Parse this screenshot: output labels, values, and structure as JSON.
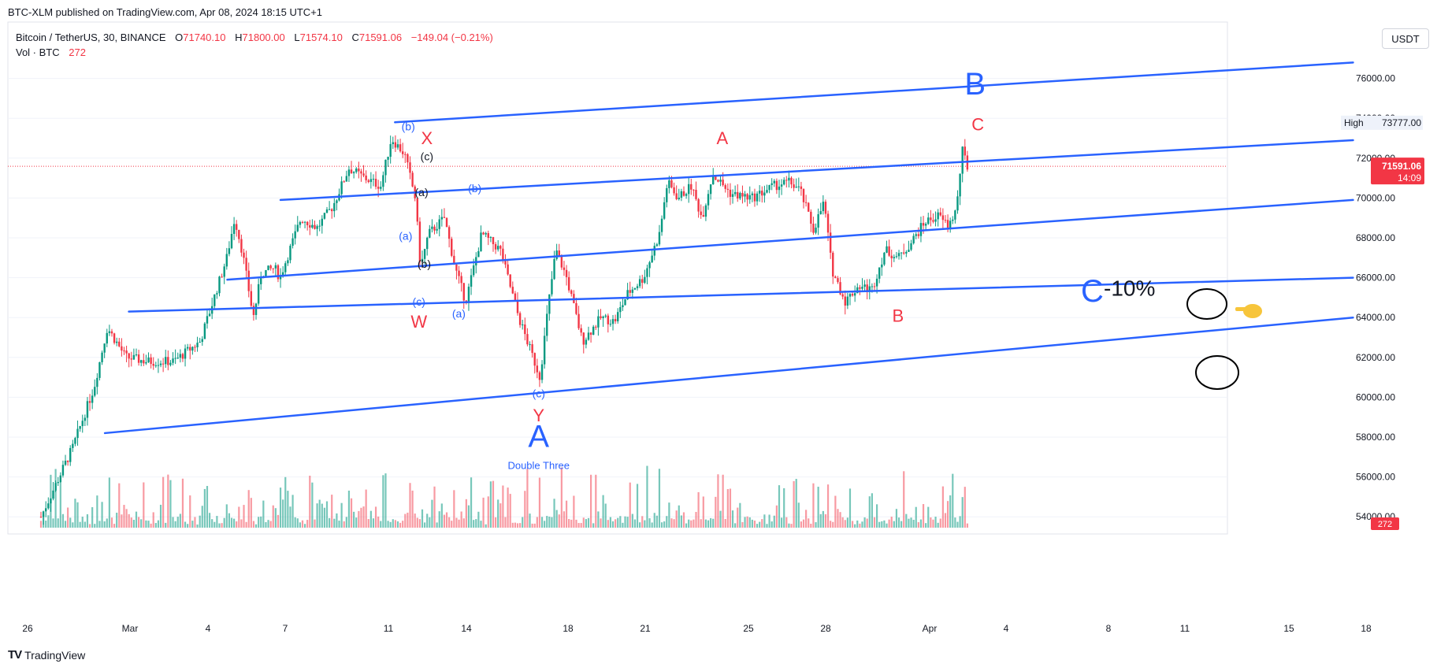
{
  "header": {
    "published": "BTC-XLM published on TradingView.com, Apr 08, 2024 18:15 UTC+1"
  },
  "legend": {
    "symbol": "Bitcoin / TetherUS, 30, BINANCE",
    "open_label": "O",
    "open": "71740.10",
    "high_label": "H",
    "high": "71800.00",
    "low_label": "L",
    "low": "71574.10",
    "close_label": "C",
    "close": "71591.06",
    "change": "−149.04 (−0.21%)",
    "volume_label": "Vol · BTC",
    "volume": "272"
  },
  "currency_button": "USDT",
  "footer": {
    "logo": "TV",
    "brand": "TradingView"
  },
  "colors": {
    "up": "#089981",
    "down": "#f23645",
    "channel": "#2962ff",
    "label_blue": "#2962ff",
    "label_red": "#f23645",
    "label_black": "#131722"
  },
  "chart_data": {
    "type": "candlestick",
    "timeframe": "30",
    "x_ticks": [
      "26",
      "Mar",
      "4",
      "7",
      "11",
      "14",
      "18",
      "21",
      "25",
      "28",
      "Apr",
      "4",
      "8",
      "11",
      "15",
      "18"
    ],
    "y_ticks": [
      "54000.00",
      "56000.00",
      "58000.00",
      "60000.00",
      "62000.00",
      "64000.00",
      "66000.00",
      "68000.00",
      "70000.00",
      "72000.00",
      "74000.00",
      "76000.00"
    ],
    "ylim": [
      53000,
      77500
    ],
    "price_path": [
      [
        0,
        54000
      ],
      [
        1.2,
        57500
      ],
      [
        2,
        60500
      ],
      [
        2.5,
        63500
      ],
      [
        3.2,
        62000
      ],
      [
        4,
        61800
      ],
      [
        5,
        61800
      ],
      [
        6,
        62800
      ],
      [
        7,
        67000
      ],
      [
        7.3,
        69000
      ],
      [
        7.6,
        67200
      ],
      [
        8,
        64000
      ],
      [
        8.3,
        66200
      ],
      [
        8.8,
        66500
      ],
      [
        9,
        66000
      ],
      [
        9.8,
        69000
      ],
      [
        10.4,
        68500
      ],
      [
        11,
        69600
      ],
      [
        11.6,
        71500
      ],
      [
        12.2,
        71000
      ],
      [
        12.8,
        70600
      ],
      [
        13.2,
        73000
      ],
      [
        13.7,
        72200
      ],
      [
        14.1,
        70000
      ],
      [
        14.3,
        66500
      ],
      [
        14.6,
        68200
      ],
      [
        15.2,
        69000
      ],
      [
        15.6,
        66500
      ],
      [
        16,
        64800
      ],
      [
        16.6,
        68200
      ],
      [
        17.3,
        67400
      ],
      [
        18,
        64000
      ],
      [
        18.4,
        62500
      ],
      [
        18.8,
        61000
      ],
      [
        19.1,
        64500
      ],
      [
        19.4,
        67400
      ],
      [
        19.8,
        66000
      ],
      [
        20.4,
        62800
      ],
      [
        21.1,
        64000
      ],
      [
        21.6,
        63800
      ],
      [
        22.1,
        65200
      ],
      [
        22.7,
        66000
      ],
      [
        23.3,
        68200
      ],
      [
        23.6,
        70800
      ],
      [
        24,
        70000
      ],
      [
        24.5,
        70600
      ],
      [
        24.9,
        69000
      ],
      [
        25.3,
        71200
      ],
      [
        26,
        70200
      ],
      [
        26.8,
        70000
      ],
      [
        27.6,
        70600
      ],
      [
        28.2,
        70800
      ],
      [
        28.6,
        70400
      ],
      [
        29.1,
        68400
      ],
      [
        29.5,
        69800
      ],
      [
        29.8,
        66400
      ],
      [
        30.3,
        64800
      ],
      [
        30.8,
        65600
      ],
      [
        31.3,
        65400
      ],
      [
        31.8,
        67400
      ],
      [
        32.3,
        67000
      ],
      [
        32.8,
        67800
      ],
      [
        33.3,
        68800
      ],
      [
        33.8,
        69100
      ],
      [
        34.2,
        68600
      ],
      [
        34.5,
        69500
      ],
      [
        34.7,
        72400
      ],
      [
        34.9,
        71591
      ]
    ],
    "high_label": "High",
    "high_value": "73777.00",
    "last_price": "71591.06",
    "countdown": "14:09",
    "volume_last": "272",
    "channel_lines": [
      {
        "from": [
          13.3,
          73800
        ],
        "to": [
          49.3,
          76800
        ]
      },
      {
        "from": [
          9,
          69900
        ],
        "to": [
          49.3,
          72900
        ]
      },
      {
        "from": [
          7,
          65900
        ],
        "to": [
          49.3,
          69900
        ]
      },
      {
        "from": [
          3.3,
          64300
        ],
        "to": [
          49.3,
          66000
        ]
      },
      {
        "from": [
          2.4,
          58200
        ],
        "to": [
          49.3,
          64000
        ]
      }
    ],
    "annotations": [
      {
        "text": "(b)",
        "x": 13.8,
        "y": 73400,
        "color": "blue",
        "size": "small"
      },
      {
        "text": "X",
        "x": 14.5,
        "y": 72700,
        "color": "red",
        "size": "medium"
      },
      {
        "text": "(c)",
        "x": 14.5,
        "y": 71900,
        "color": "black",
        "size": "small"
      },
      {
        "text": "(a)",
        "x": 14.3,
        "y": 70100,
        "color": "black",
        "size": "small"
      },
      {
        "text": "(b)",
        "x": 16.3,
        "y": 70300,
        "color": "blue",
        "size": "small"
      },
      {
        "text": "(a)",
        "x": 13.7,
        "y": 67900,
        "color": "blue",
        "size": "small"
      },
      {
        "text": "(b)",
        "x": 14.4,
        "y": 66500,
        "color": "black",
        "size": "small"
      },
      {
        "text": "(c)",
        "x": 14.2,
        "y": 64600,
        "color": "blue",
        "size": "small"
      },
      {
        "text": "W",
        "x": 14.2,
        "y": 63500,
        "color": "red",
        "size": "medium"
      },
      {
        "text": "(a)",
        "x": 15.7,
        "y": 64000,
        "color": "blue",
        "size": "small"
      },
      {
        "text": "(c)",
        "x": 18.7,
        "y": 60000,
        "color": "blue",
        "size": "small"
      },
      {
        "text": "Y",
        "x": 18.7,
        "y": 58800,
        "color": "red",
        "size": "medium"
      },
      {
        "text": "A",
        "x": 18.7,
        "y": 57500,
        "color": "blue",
        "size": "large"
      },
      {
        "text": "Double Three",
        "x": 18.7,
        "y": 56400,
        "color": "blue",
        "size": "caption"
      },
      {
        "text": "A",
        "x": 25.6,
        "y": 72700,
        "color": "red",
        "size": "medium"
      },
      {
        "text": "B",
        "x": 32.2,
        "y": 63800,
        "color": "red",
        "size": "medium"
      },
      {
        "text": "C",
        "x": 35.2,
        "y": 73400,
        "color": "red",
        "size": "medium"
      },
      {
        "text": "B",
        "x": 35.1,
        "y": 75200,
        "color": "blue",
        "size": "large"
      },
      {
        "text": "C",
        "x": 39.5,
        "y": 64800,
        "color": "blue",
        "size": "large"
      },
      {
        "text": "-10%",
        "x": 40.9,
        "y": 65100,
        "color": "black",
        "size": "percent"
      }
    ]
  }
}
